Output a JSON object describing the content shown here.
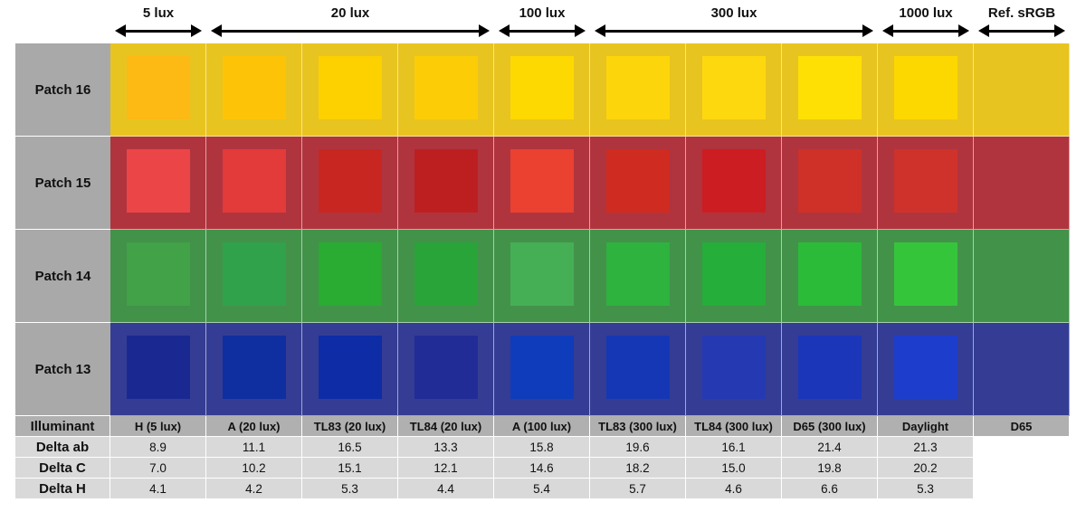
{
  "lux_ranges": [
    {
      "label": "5 lux",
      "first_col": 0,
      "last_col": 0
    },
    {
      "label": "20 lux",
      "first_col": 1,
      "last_col": 3
    },
    {
      "label": "100 lux",
      "first_col": 4,
      "last_col": 4
    },
    {
      "label": "300 lux",
      "first_col": 5,
      "last_col": 7
    },
    {
      "label": "1000 lux",
      "first_col": 8,
      "last_col": 8
    },
    {
      "label": "Ref. sRGB",
      "first_col": 9,
      "last_col": 9
    }
  ],
  "patches": [
    {
      "label": "Patch 16",
      "background": "#e8c420",
      "swatches": [
        "#fdb914",
        "#fdc407",
        "#fdd000",
        "#fccd06",
        "#fed901",
        "#fdd50b",
        "#fed80e",
        "#fee005",
        "#fdd800"
      ]
    },
    {
      "label": "Patch 15",
      "background": "#b0343e",
      "swatches": [
        "#eb4548",
        "#e33a3a",
        "#c72720",
        "#bd1f21",
        "#ea4130",
        "#d02b20",
        "#cc1e22",
        "#cf3028",
        "#cf322b"
      ]
    },
    {
      "label": "Patch 14",
      "background": "#42924a",
      "swatches": [
        "#41a247",
        "#30a24b",
        "#2aab32",
        "#29a439",
        "#45af55",
        "#2eb33e",
        "#25ae39",
        "#2bbb39",
        "#35c53b"
      ]
    },
    {
      "label": "Patch 13",
      "background": "#343d93",
      "swatches": [
        "#1a2991",
        "#0f2e9f",
        "#0d2ca6",
        "#212c97",
        "#0f3cbb",
        "#1537b5",
        "#2539b3",
        "#1b36b9",
        "#1d3dcc"
      ]
    }
  ],
  "table": {
    "illuminant": {
      "label": "Illuminant",
      "values": [
        "H (5 lux)",
        "A (20 lux)",
        "TL83 (20 lux)",
        "TL84 (20 lux)",
        "A (100 lux)",
        "TL83 (300 lux)",
        "TL84 (300 lux)",
        "D65 (300 lux)",
        "Daylight",
        "D65"
      ]
    },
    "rows": [
      {
        "label": "Delta ab",
        "values": [
          "8.9",
          "11.1",
          "16.5",
          "13.3",
          "15.8",
          "19.6",
          "16.1",
          "21.4",
          "21.3"
        ]
      },
      {
        "label": "Delta C",
        "values": [
          "7.0",
          "10.2",
          "15.1",
          "12.1",
          "14.6",
          "18.2",
          "15.0",
          "19.8",
          "20.2"
        ]
      },
      {
        "label": "Delta H",
        "values": [
          "4.1",
          "4.2",
          "5.3",
          "4.4",
          "5.4",
          "5.7",
          "4.6",
          "6.6",
          "5.3"
        ]
      }
    ]
  }
}
